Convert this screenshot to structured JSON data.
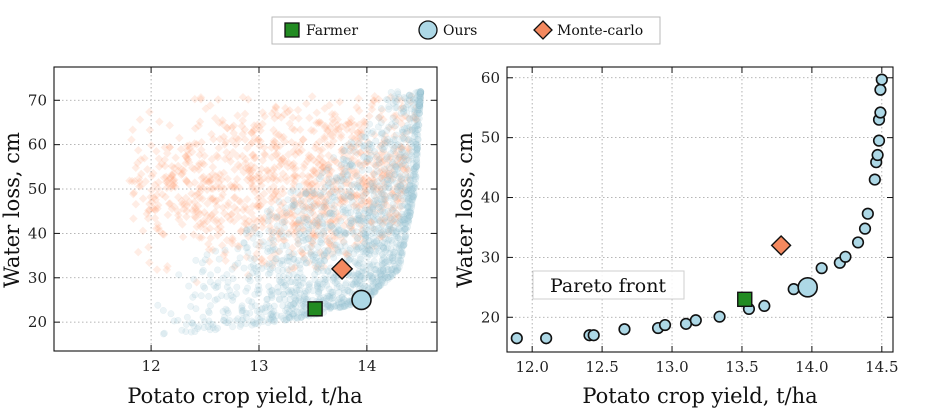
{
  "legend": [
    {
      "name": "Farmer",
      "marker": "square",
      "color": "#228b22"
    },
    {
      "name": "Ours",
      "marker": "circle",
      "color": "#add8e6"
    },
    {
      "name": "Monte-carlo",
      "marker": "diamond",
      "color": "#f4895f"
    }
  ],
  "colors": {
    "farmer": "#228b22",
    "ours": "#add8e6",
    "monte_carlo": "#f4895f",
    "cloud_ours": "#a9cfdc",
    "cloud_mc": "#ff9a6e",
    "grid": "#9e9e9e"
  },
  "chart_data": [
    {
      "type": "scatter",
      "xlabel": "Potato crop yield, t/ha",
      "ylabel": "Water loss, cm",
      "xlim": [
        11.1,
        14.65
      ],
      "ylim": [
        13.5,
        77.5
      ],
      "xticks": [
        12,
        13,
        14
      ],
      "yticks": [
        20,
        30,
        40,
        50,
        60,
        70
      ],
      "grid": true,
      "series": [
        {
          "name": "Monte-carlo",
          "kind": "cloud",
          "region": {
            "x_range": [
              11.2,
              14.5
            ],
            "y_center": 50,
            "y_spread": 12
          },
          "description": "dense orange translucent point cloud"
        },
        {
          "name": "Ours",
          "kind": "cloud",
          "boundary": {
            "x": [
              11.8,
              12.0,
              12.5,
              13.0,
              13.5,
              14.0,
              14.3,
              14.45,
              14.5
            ],
            "y": [
              16.5,
              17.0,
              18.0,
              19.5,
              21.5,
              25.0,
              32.0,
              50.0,
              72.0
            ]
          },
          "description": "light blue translucent point cloud above the Pareto boundary"
        },
        {
          "name": "Farmer",
          "points": [
            {
              "x": 13.52,
              "y": 23.0
            }
          ]
        },
        {
          "name": "Ours",
          "points": [
            {
              "x": 13.95,
              "y": 25.0
            }
          ]
        },
        {
          "name": "Monte-carlo",
          "points": [
            {
              "x": 13.77,
              "y": 32.0
            }
          ]
        }
      ]
    },
    {
      "type": "scatter",
      "xlabel": "Potato crop yield, t/ha",
      "ylabel": "Water loss, cm",
      "xlim": [
        11.82,
        14.58
      ],
      "ylim": [
        14.2,
        61.8
      ],
      "xticks": [
        12.0,
        12.5,
        13.0,
        13.5,
        14.0,
        14.5
      ],
      "yticks": [
        20,
        30,
        40,
        50,
        60
      ],
      "grid": true,
      "annotation": "Pareto front",
      "series": [
        {
          "name": "Ours",
          "kind": "pareto_front",
          "points": [
            {
              "x": 11.89,
              "y": 16.5
            },
            {
              "x": 12.1,
              "y": 16.5
            },
            {
              "x": 12.41,
              "y": 17.0
            },
            {
              "x": 12.44,
              "y": 17.0
            },
            {
              "x": 12.66,
              "y": 18.0
            },
            {
              "x": 12.9,
              "y": 18.2
            },
            {
              "x": 12.95,
              "y": 18.7
            },
            {
              "x": 13.1,
              "y": 18.9
            },
            {
              "x": 13.17,
              "y": 19.5
            },
            {
              "x": 13.34,
              "y": 20.1
            },
            {
              "x": 13.55,
              "y": 21.4
            },
            {
              "x": 13.66,
              "y": 21.9
            },
            {
              "x": 13.87,
              "y": 24.7
            },
            {
              "x": 14.07,
              "y": 28.2
            },
            {
              "x": 14.2,
              "y": 29.1
            },
            {
              "x": 14.24,
              "y": 30.1
            },
            {
              "x": 14.33,
              "y": 32.5
            },
            {
              "x": 14.38,
              "y": 34.8
            },
            {
              "x": 14.4,
              "y": 37.3
            },
            {
              "x": 14.45,
              "y": 43.0
            },
            {
              "x": 14.46,
              "y": 45.9
            },
            {
              "x": 14.47,
              "y": 47.1
            },
            {
              "x": 14.48,
              "y": 49.5
            },
            {
              "x": 14.48,
              "y": 53.0
            },
            {
              "x": 14.49,
              "y": 54.2
            },
            {
              "x": 14.49,
              "y": 58.0
            },
            {
              "x": 14.5,
              "y": 59.7
            }
          ]
        },
        {
          "name": "Farmer",
          "points": [
            {
              "x": 13.52,
              "y": 23.0
            }
          ]
        },
        {
          "name": "Ours",
          "points": [
            {
              "x": 13.97,
              "y": 25.0
            }
          ]
        },
        {
          "name": "Monte-carlo",
          "points": [
            {
              "x": 13.78,
              "y": 32.0
            }
          ]
        }
      ]
    }
  ]
}
